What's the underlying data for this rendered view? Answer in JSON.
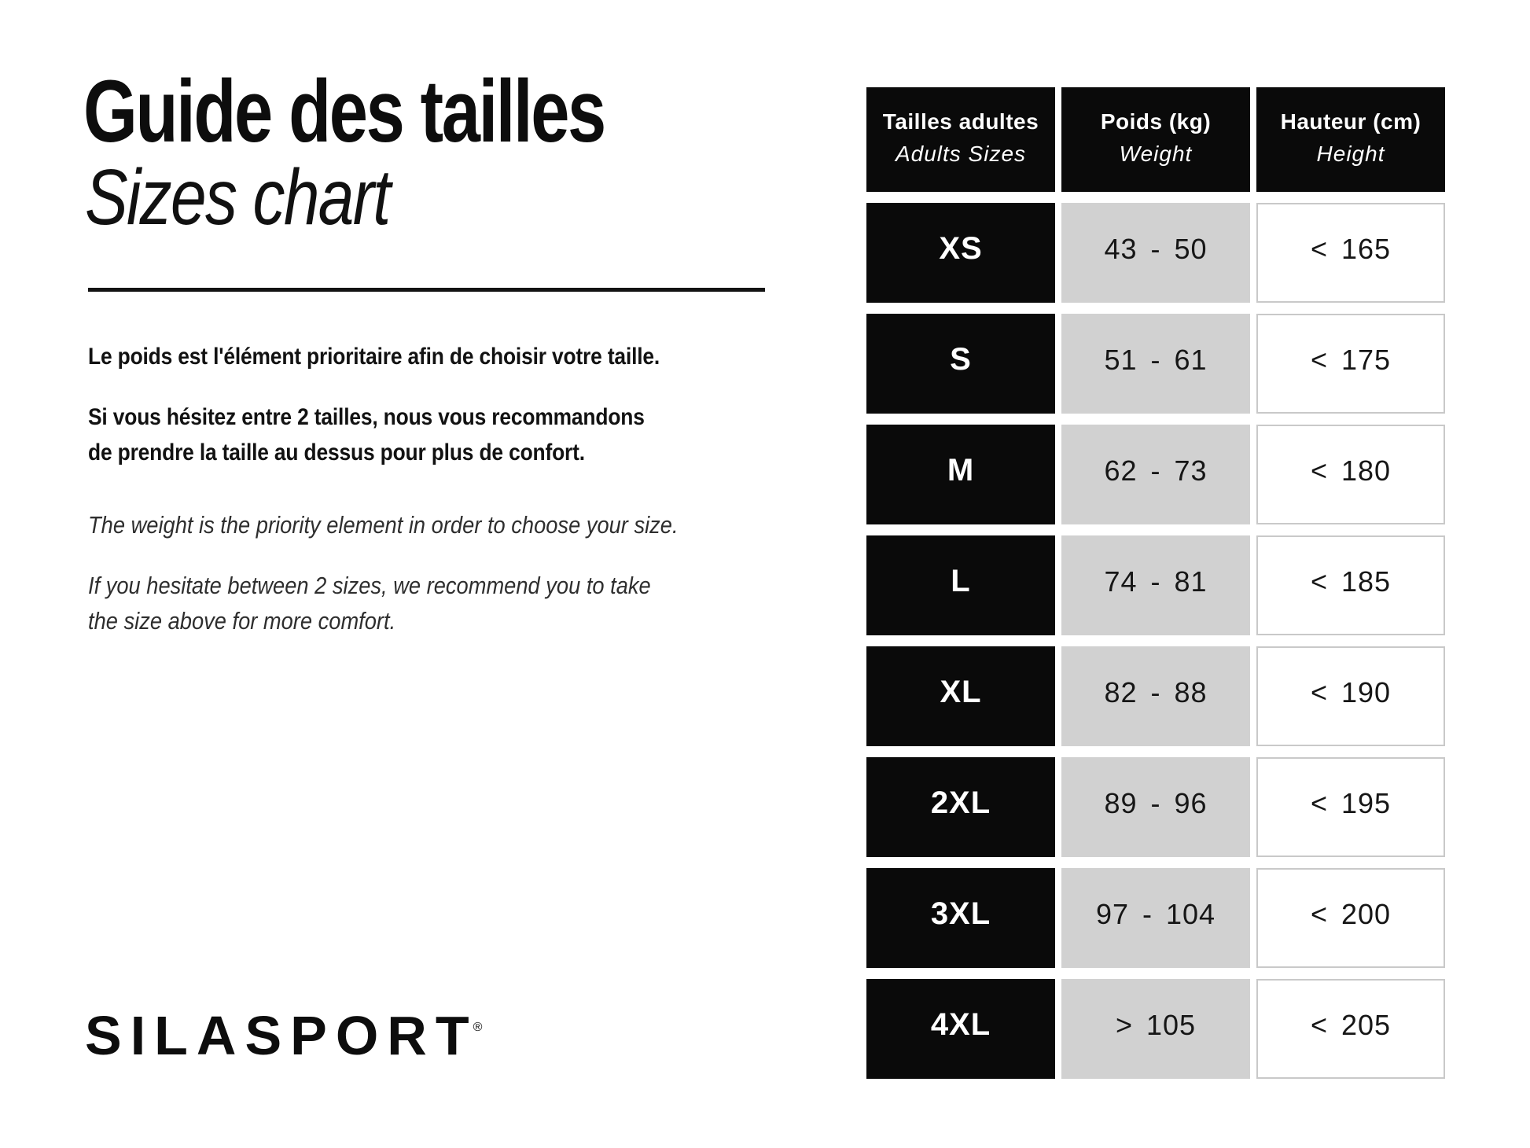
{
  "header": {
    "title_fr": "Guide des tailles",
    "title_en": "Sizes chart"
  },
  "intro": {
    "fr_weight": "Le poids est l'élément prioritaire afin de choisir votre taille.",
    "fr_hesitate_line1": "Si vous hésitez entre 2 tailles, nous vous recommandons",
    "fr_hesitate_line2": "de prendre la taille au dessus pour plus de confort.",
    "en_weight": "The weight is the priority element in order to choose your size.",
    "en_hesitate_line1": "If you hesitate between 2 sizes, we recommend you to take",
    "en_hesitate_line2": "the size above for more comfort."
  },
  "footer": {
    "logo_text": "SILASPORT",
    "registered_mark": "®"
  },
  "colors": {
    "cell_black": "#0a0a0a",
    "cell_gray": "#d1d1d1",
    "white_cell_border": "#c9c9c9",
    "page_background": "#ffffff",
    "text_color": "#141414"
  },
  "chart_data": {
    "type": "table",
    "title": "Guide des tailles / Sizes chart",
    "columns": [
      {
        "fr": "Tailles adultes",
        "en": "Adults Sizes"
      },
      {
        "fr": "Poids (kg)",
        "en": "Weight"
      },
      {
        "fr": "Hauteur (cm)",
        "en": "Height"
      }
    ],
    "rows": [
      {
        "size": "XS",
        "weight": "43 - 50",
        "height": "< 165"
      },
      {
        "size": "S",
        "weight": "51 - 61",
        "height": "< 175"
      },
      {
        "size": "M",
        "weight": "62 - 73",
        "height": "< 180"
      },
      {
        "size": "L",
        "weight": "74 - 81",
        "height": "< 185"
      },
      {
        "size": "XL",
        "weight": "82 - 88",
        "height": "< 190"
      },
      {
        "size": "2XL",
        "weight": "89 - 96",
        "height": "< 195"
      },
      {
        "size": "3XL",
        "weight": "97 - 104",
        "height": "< 200"
      },
      {
        "size": "4XL",
        "weight": "> 105",
        "height": "< 205"
      }
    ]
  }
}
